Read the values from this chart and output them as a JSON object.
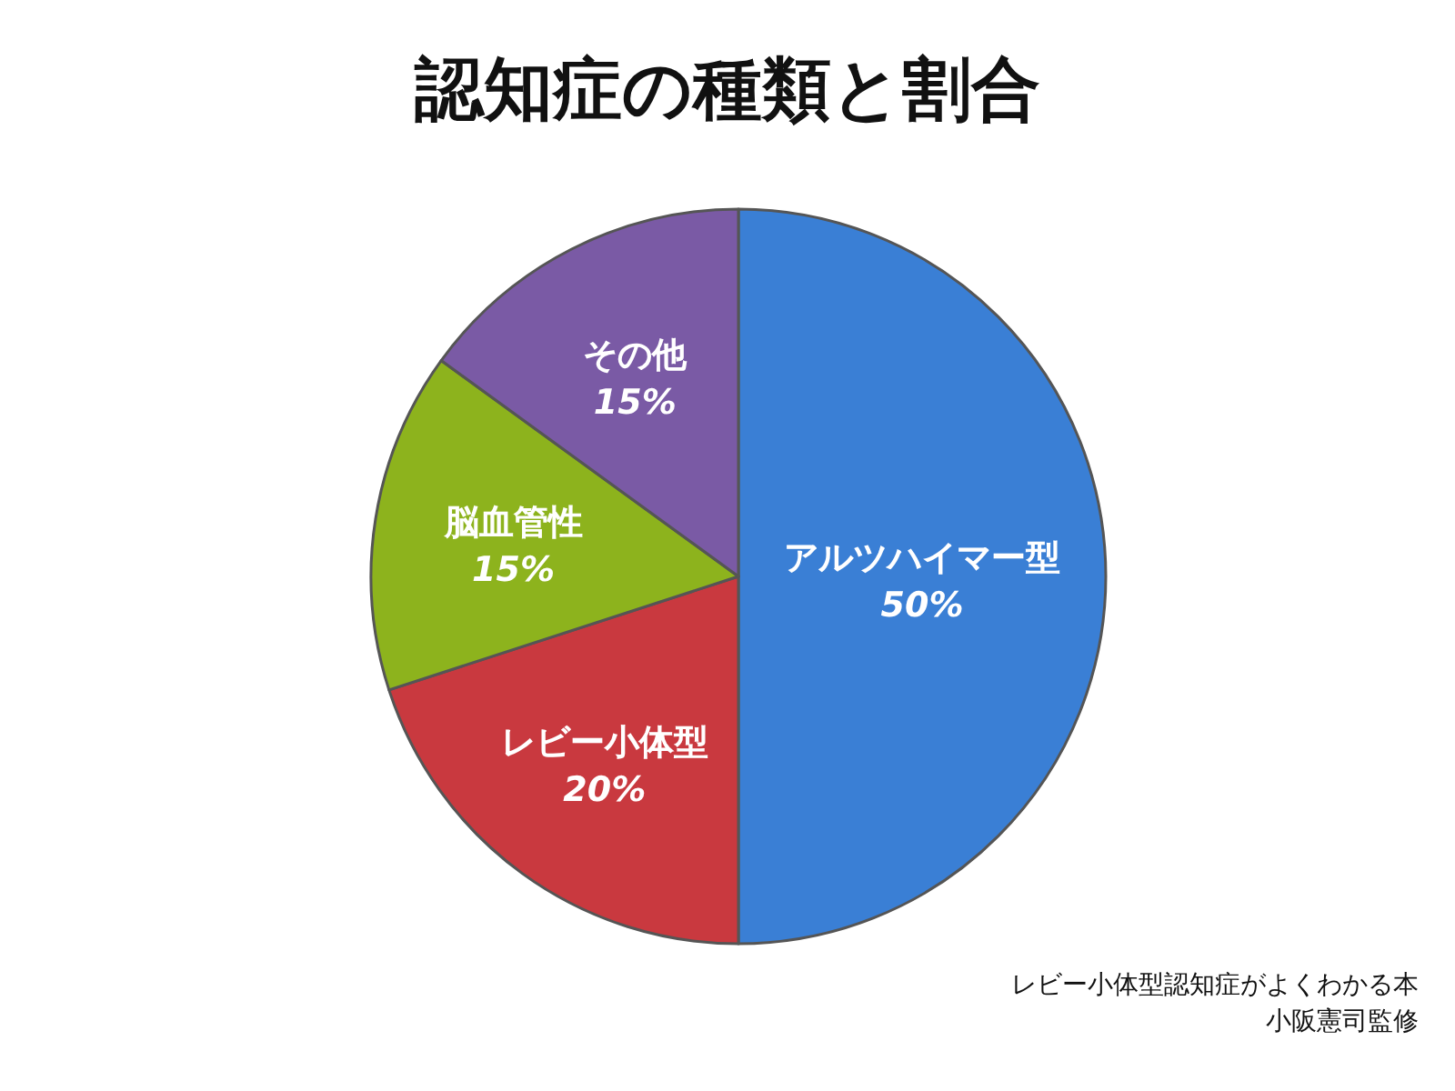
{
  "chart_data": {
    "type": "pie",
    "title": "認知症の種類と割合",
    "categories": [
      "アルツハイマー型",
      "レビー小体型",
      "脳血管性",
      "その他"
    ],
    "values": [
      50,
      20,
      15,
      15
    ],
    "colors": [
      "#3a7fd5",
      "#c9393f",
      "#8db31d",
      "#7a5aa5"
    ],
    "value_labels": [
      "50%",
      "20%",
      "15%",
      "15%"
    ],
    "annotations": [
      "レビー小体型認知症がよくわかる本",
      "小阪憲司監修"
    ]
  }
}
